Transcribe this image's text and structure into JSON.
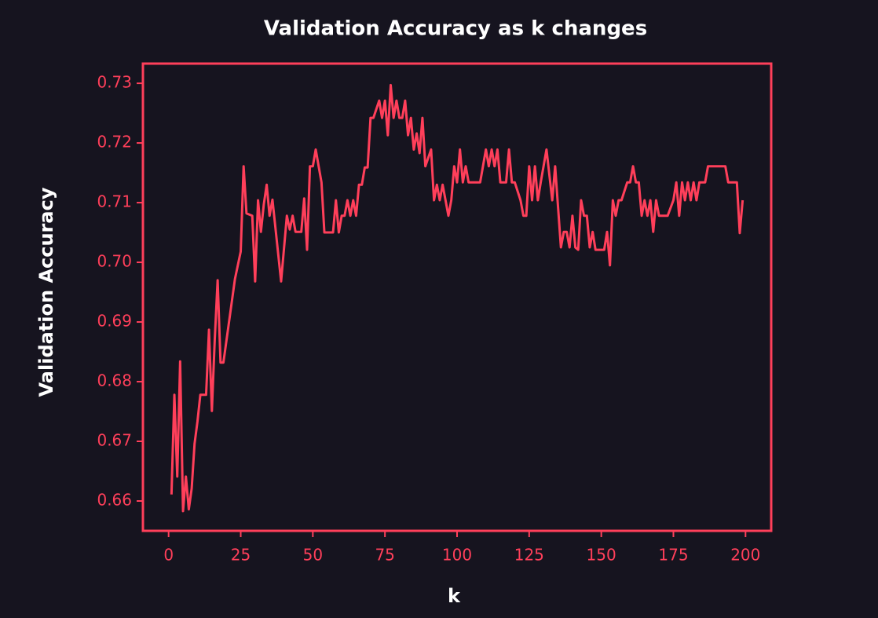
{
  "chart_data": {
    "type": "line",
    "title": "Validation Accuracy as k changes",
    "xlabel": "k",
    "ylabel": "Validation Accuracy",
    "color": "#ff3f5a",
    "background": "#16141f",
    "grid": false,
    "xlim": [
      -8.9,
      208.9
    ],
    "xticks": [
      0,
      25,
      50,
      75,
      100,
      125,
      150,
      175,
      200
    ],
    "ylim": [
      0.655,
      0.7333
    ],
    "yticks": [
      0.66,
      0.67,
      0.68,
      0.69,
      {
        "value": 0.7,
        "label": "0.70"
      },
      0.71,
      0.72,
      0.73
    ],
    "x": [
      1,
      2,
      3,
      4,
      5,
      6,
      7,
      8,
      9,
      10,
      11,
      13,
      14,
      15,
      16,
      17,
      18,
      19,
      23,
      25,
      26,
      27,
      29,
      30,
      31,
      32,
      33,
      34,
      35,
      36,
      39,
      41,
      42,
      43,
      44,
      46,
      47,
      48,
      49,
      50,
      51,
      53,
      54,
      57,
      58,
      59,
      60,
      61,
      62,
      63,
      64,
      65,
      66,
      67,
      68,
      69,
      70,
      71,
      73,
      74,
      75,
      76,
      77,
      78,
      79,
      80,
      81,
      82,
      83,
      84,
      85,
      86,
      87,
      88,
      89,
      91,
      92,
      93,
      94,
      95,
      96,
      97,
      98,
      99,
      100,
      101,
      102,
      103,
      104,
      108,
      110,
      111,
      112,
      113,
      114,
      115,
      117,
      118,
      119,
      120,
      122,
      123,
      124,
      125,
      126,
      127,
      128,
      129,
      131,
      133,
      134,
      136,
      137,
      138,
      139,
      140,
      141,
      142,
      143,
      144,
      145,
      146,
      147,
      148,
      151,
      152,
      153,
      154,
      155,
      156,
      157,
      159,
      160,
      161,
      162,
      163,
      164,
      165,
      166,
      167,
      168,
      169,
      170,
      173,
      175,
      176,
      177,
      178,
      179,
      180,
      181,
      182,
      183,
      184,
      186,
      187,
      193,
      194,
      197,
      198,
      199
    ],
    "values": [
      0.6611,
      0.6778,
      0.6641,
      0.6834,
      0.6583,
      0.6641,
      0.6586,
      0.6621,
      0.6696,
      0.6733,
      0.6778,
      0.6778,
      0.6887,
      0.6751,
      0.6871,
      0.697,
      0.6832,
      0.6832,
      0.6972,
      0.7018,
      0.7161,
      0.7082,
      0.7078,
      0.6968,
      0.7104,
      0.7051,
      0.7097,
      0.713,
      0.7078,
      0.7105,
      0.6968,
      0.7078,
      0.7055,
      0.7078,
      0.7051,
      0.7051,
      0.7107,
      0.7021,
      0.7161,
      0.7161,
      0.7189,
      0.7134,
      0.705,
      0.705,
      0.7104,
      0.705,
      0.7078,
      0.7078,
      0.7104,
      0.7078,
      0.7104,
      0.7078,
      0.713,
      0.713,
      0.7159,
      0.7159,
      0.7242,
      0.7242,
      0.7271,
      0.7242,
      0.7271,
      0.7213,
      0.7297,
      0.7242,
      0.7271,
      0.7242,
      0.7242,
      0.7271,
      0.7213,
      0.7242,
      0.7189,
      0.7216,
      0.7183,
      0.7242,
      0.7161,
      0.7189,
      0.7104,
      0.713,
      0.7104,
      0.713,
      0.7104,
      0.7078,
      0.7104,
      0.7161,
      0.7134,
      0.7189,
      0.7134,
      0.7161,
      0.7134,
      0.7134,
      0.7189,
      0.7161,
      0.7189,
      0.7161,
      0.7189,
      0.7134,
      0.7134,
      0.7189,
      0.7134,
      0.7134,
      0.7104,
      0.7078,
      0.7078,
      0.7161,
      0.7104,
      0.7161,
      0.7104,
      0.7134,
      0.7189,
      0.7104,
      0.7161,
      0.7025,
      0.7051,
      0.7051,
      0.7025,
      0.7078,
      0.7025,
      0.7021,
      0.7104,
      0.7078,
      0.7078,
      0.7025,
      0.7051,
      0.7021,
      0.7021,
      0.7051,
      0.6995,
      0.7104,
      0.7078,
      0.7104,
      0.7104,
      0.7134,
      0.7134,
      0.7161,
      0.7134,
      0.7134,
      0.7078,
      0.7104,
      0.7078,
      0.7104,
      0.7051,
      0.7104,
      0.7078,
      0.7078,
      0.7104,
      0.7134,
      0.7078,
      0.7134,
      0.7104,
      0.7134,
      0.7104,
      0.7134,
      0.7104,
      0.7134,
      0.7134,
      0.7161,
      0.7161,
      0.7134,
      0.7134,
      0.7049,
      0.7104
    ]
  }
}
